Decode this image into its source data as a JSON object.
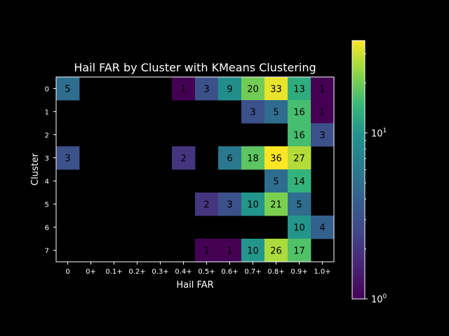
{
  "chart_data": {
    "type": "heatmap",
    "title": "Hail FAR by Cluster with KMeans Clustering",
    "xlabel": "Hail FAR",
    "ylabel": "Cluster",
    "x_ticks": [
      "0",
      "0+",
      "0.1+",
      "0.2+",
      "0.3+",
      "0.4+",
      "0.5+",
      "0.6+",
      "0.7+",
      "0.8+",
      "0.9+",
      "1.0+"
    ],
    "y_ticks": [
      "0",
      "1",
      "2",
      "3",
      "4",
      "5",
      "6",
      "7"
    ],
    "values": [
      [
        5,
        null,
        null,
        null,
        null,
        1,
        3,
        9,
        20,
        33,
        13,
        1
      ],
      [
        null,
        null,
        null,
        null,
        null,
        null,
        null,
        null,
        3,
        5,
        16,
        1
      ],
      [
        null,
        null,
        null,
        null,
        null,
        null,
        null,
        null,
        null,
        null,
        16,
        3
      ],
      [
        3,
        null,
        null,
        null,
        null,
        2,
        null,
        6,
        18,
        36,
        27,
        null
      ],
      [
        null,
        null,
        null,
        null,
        null,
        null,
        null,
        null,
        null,
        5,
        14,
        null
      ],
      [
        null,
        null,
        null,
        null,
        null,
        null,
        2,
        3,
        10,
        21,
        5,
        null
      ],
      [
        null,
        null,
        null,
        null,
        null,
        null,
        null,
        null,
        null,
        null,
        10,
        4
      ],
      [
        null,
        null,
        null,
        null,
        null,
        null,
        1,
        1,
        10,
        26,
        17,
        null
      ]
    ],
    "colorscale": "viridis",
    "color_scale_type": "log",
    "color_range": [
      1,
      36
    ],
    "colorbar_ticks": [
      {
        "base": "10",
        "exp": "0",
        "value": 1
      },
      {
        "base": "10",
        "exp": "1",
        "value": 10
      }
    ],
    "background_color": "#000000"
  }
}
